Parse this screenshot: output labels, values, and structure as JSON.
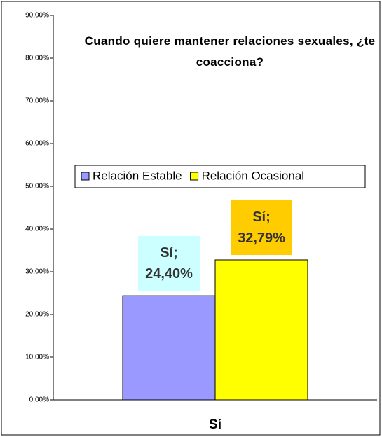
{
  "chart_data": {
    "type": "bar",
    "title": "Cuando quiere mantener relaciones sexuales, ¿te coacciona?",
    "categories": [
      "Sí"
    ],
    "series": [
      {
        "name": "Relación Estable",
        "color": "#9999ff",
        "label_color": "#ccffff",
        "values": [
          24.4
        ],
        "value_labels": [
          "Sí; 24,40%"
        ]
      },
      {
        "name": "Relación Ocasional",
        "color": "#ffff00",
        "label_color": "#ffcc00",
        "values": [
          32.79
        ],
        "value_labels": [
          "Sí; 32,79%"
        ]
      }
    ],
    "ylim": [
      0,
      90
    ],
    "yticks": [
      {
        "value": 0,
        "label": "0,00%"
      },
      {
        "value": 10,
        "label": "10,00%"
      },
      {
        "value": 20,
        "label": "20,00%"
      },
      {
        "value": 30,
        "label": "30,00%"
      },
      {
        "value": 40,
        "label": "40,00%"
      },
      {
        "value": 50,
        "label": "50,00%"
      },
      {
        "value": 60,
        "label": "60,00%"
      },
      {
        "value": 70,
        "label": "70,00%"
      },
      {
        "value": 80,
        "label": "80,00%"
      },
      {
        "value": 90,
        "label": "90,00%"
      }
    ],
    "grid": false,
    "legend": "center"
  }
}
